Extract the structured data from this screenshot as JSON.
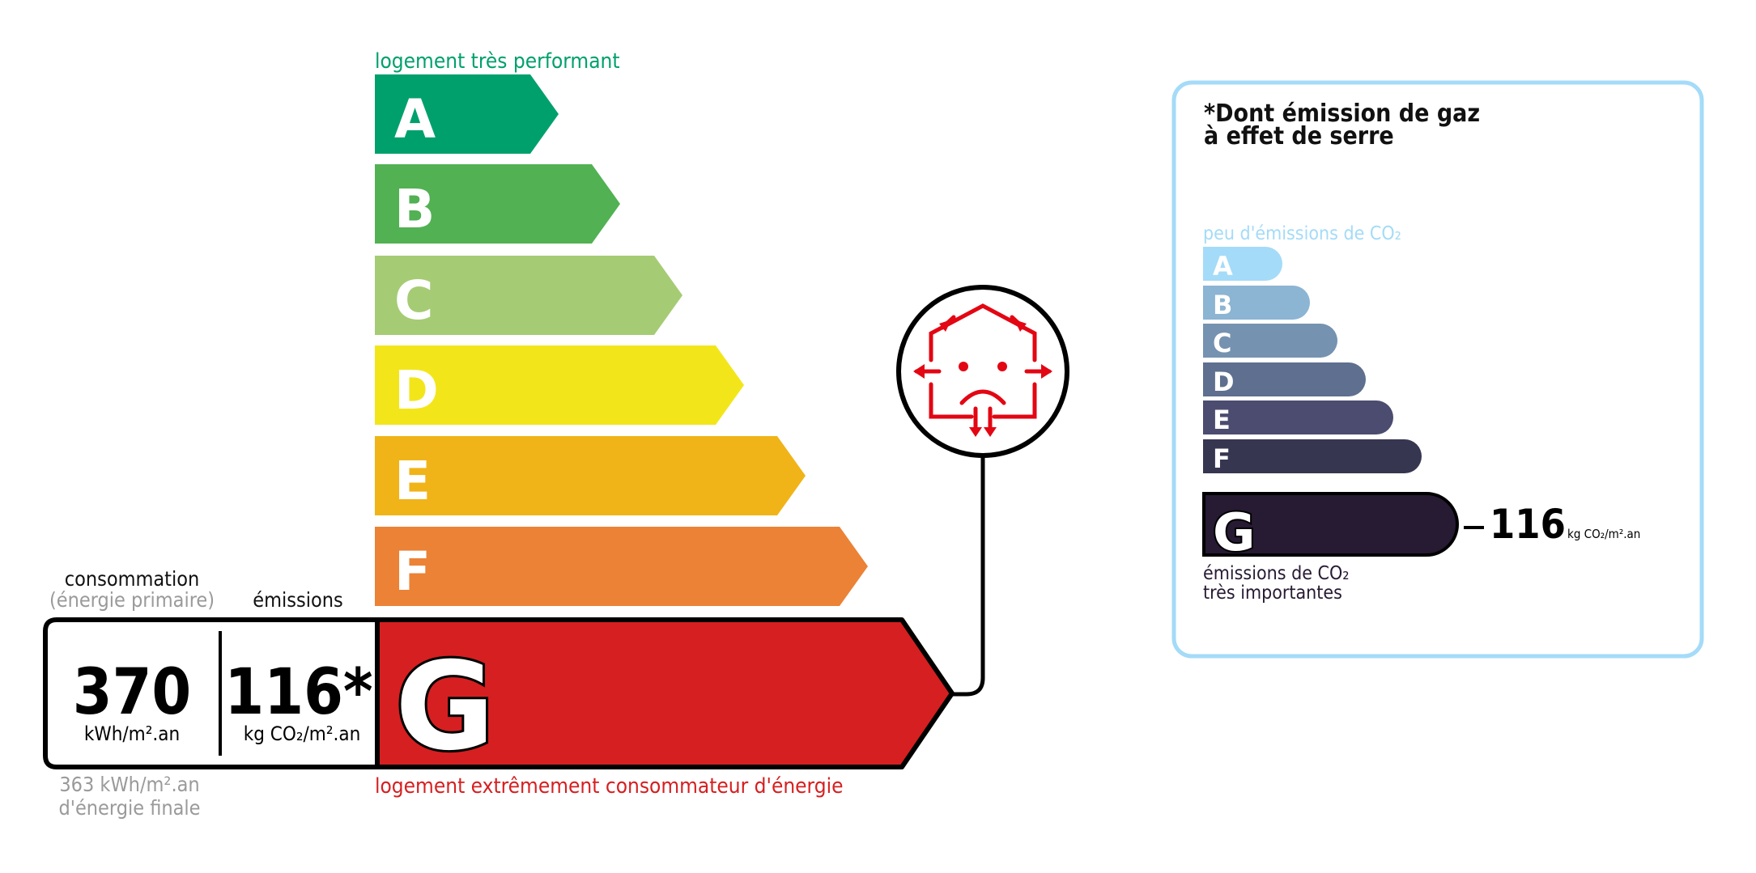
{
  "energy": {
    "top_label": "logement très performant",
    "bottom_label": "logement extrêmement consommateur d'énergie",
    "classes": [
      {
        "letter": "A",
        "color": "#00a06d"
      },
      {
        "letter": "B",
        "color": "#52b153"
      },
      {
        "letter": "C",
        "color": "#a5cc74"
      },
      {
        "letter": "D",
        "color": "#f2e61a"
      },
      {
        "letter": "E",
        "color": "#f0b418"
      },
      {
        "letter": "F",
        "color": "#eb8235"
      },
      {
        "letter": "G",
        "color": "#d61f20"
      }
    ],
    "current_class": "G",
    "consumption_header": "consommation",
    "consumption_subheader": "(énergie primaire)",
    "emissions_header": "émissions",
    "consumption_value": "370",
    "consumption_unit": "kWh/m².an",
    "emissions_value": "116*",
    "emissions_unit": "kg CO₂/m².an",
    "final_energy_line1": "363 kWh/m².an",
    "final_energy_line2": "d'énergie finale",
    "alert_icon": "sad-house-heat-loss-icon",
    "alert_color": "#e30613"
  },
  "ghg": {
    "title_line1": "*Dont émission de gaz",
    "title_line2": "à effet de serre",
    "top_label": "peu d'émissions de CO₂",
    "bottom_label_line1": "émissions de CO₂",
    "bottom_label_line2": "très importantes",
    "classes": [
      {
        "letter": "A",
        "color": "#a4dbf8"
      },
      {
        "letter": "B",
        "color": "#8cb4d3"
      },
      {
        "letter": "C",
        "color": "#7692b1"
      },
      {
        "letter": "D",
        "color": "#5e6f8f"
      },
      {
        "letter": "E",
        "color": "#4b4c6f"
      },
      {
        "letter": "F",
        "color": "#373651"
      },
      {
        "letter": "G",
        "color": "#271a33"
      }
    ],
    "current_class": "G",
    "value": "116",
    "unit": "kg CO₂/m².an",
    "border_color": "#a4dbf8"
  }
}
